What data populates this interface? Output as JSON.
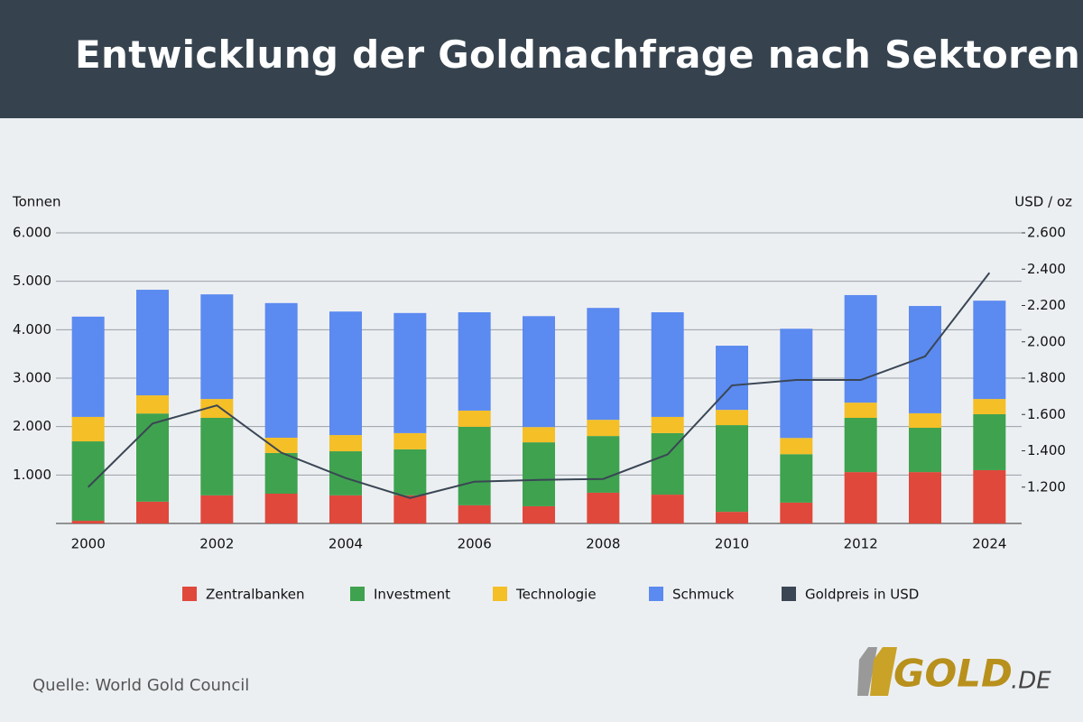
{
  "chart_data": {
    "type": "bar",
    "stacked": true,
    "title": "Entwicklung der Goldnachfrage nach Sektoren",
    "y_label": "Tonnen",
    "y2_label": "USD / oz",
    "categories": [
      "2000",
      null,
      "2002",
      null,
      "2004",
      null,
      "2006",
      null,
      "2008",
      null,
      "2010",
      null,
      "2012",
      null,
      "2024"
    ],
    "series": [
      {
        "name": "Zentralbanken",
        "color": "#e0483b",
        "values": [
          55,
          450,
          580,
          615,
          580,
          580,
          375,
          355,
          635,
          595,
          240,
          430,
          1060,
          1060,
          1100
        ]
      },
      {
        "name": "Investment",
        "color": "#3fa24f",
        "values": [
          1640,
          1820,
          1600,
          840,
          910,
          950,
          1620,
          1320,
          1170,
          1270,
          1790,
          1000,
          1120,
          915,
          1155
        ]
      },
      {
        "name": "Technologie",
        "color": "#f4bf27",
        "values": [
          505,
          375,
          390,
          315,
          335,
          335,
          335,
          315,
          335,
          335,
          315,
          335,
          315,
          300,
          315
        ]
      },
      {
        "name": "Schmuck",
        "color": "#5b8af0",
        "values": [
          2070,
          2180,
          2160,
          2780,
          2550,
          2480,
          2030,
          2290,
          2310,
          2160,
          1325,
          2255,
          2220,
          2215,
          2030
        ]
      },
      {
        "name": "Goldpreis in USD",
        "color": "#3a4654",
        "type": "line",
        "axis": "y2",
        "values": [
          1200,
          1550,
          1650,
          1390,
          1250,
          1140,
          1230,
          1240,
          1245,
          1380,
          1760,
          1790,
          1790,
          1920,
          2380
        ]
      }
    ],
    "ylim": [
      0,
      6000
    ],
    "yticks": [
      {
        "value": 1000,
        "label": "1.000"
      },
      {
        "value": 2000,
        "label": "2.000"
      },
      {
        "value": 3000,
        "label": "3.000"
      },
      {
        "value": 4000,
        "label": "4.000"
      },
      {
        "value": 5000,
        "label": "5.000"
      },
      {
        "value": 6000,
        "label": "6.000"
      }
    ],
    "y2lim": [
      1000,
      2600
    ],
    "y2ticks": [
      {
        "value": 1200,
        "label": "1.200"
      },
      {
        "value": 1400,
        "label": "1.400"
      },
      {
        "value": 1600,
        "label": "1.600"
      },
      {
        "value": 1800,
        "label": "1.800"
      },
      {
        "value": 2000,
        "label": "2.000"
      },
      {
        "value": 2200,
        "label": "2.200"
      },
      {
        "value": 2400,
        "label": "2.400"
      },
      {
        "value": 2600,
        "label": "2.600"
      }
    ],
    "grid": true,
    "legend": "bottom",
    "source": "Quelle: World Gold Council",
    "logo": "GOLD",
    "logo_suffix": ".DE"
  }
}
